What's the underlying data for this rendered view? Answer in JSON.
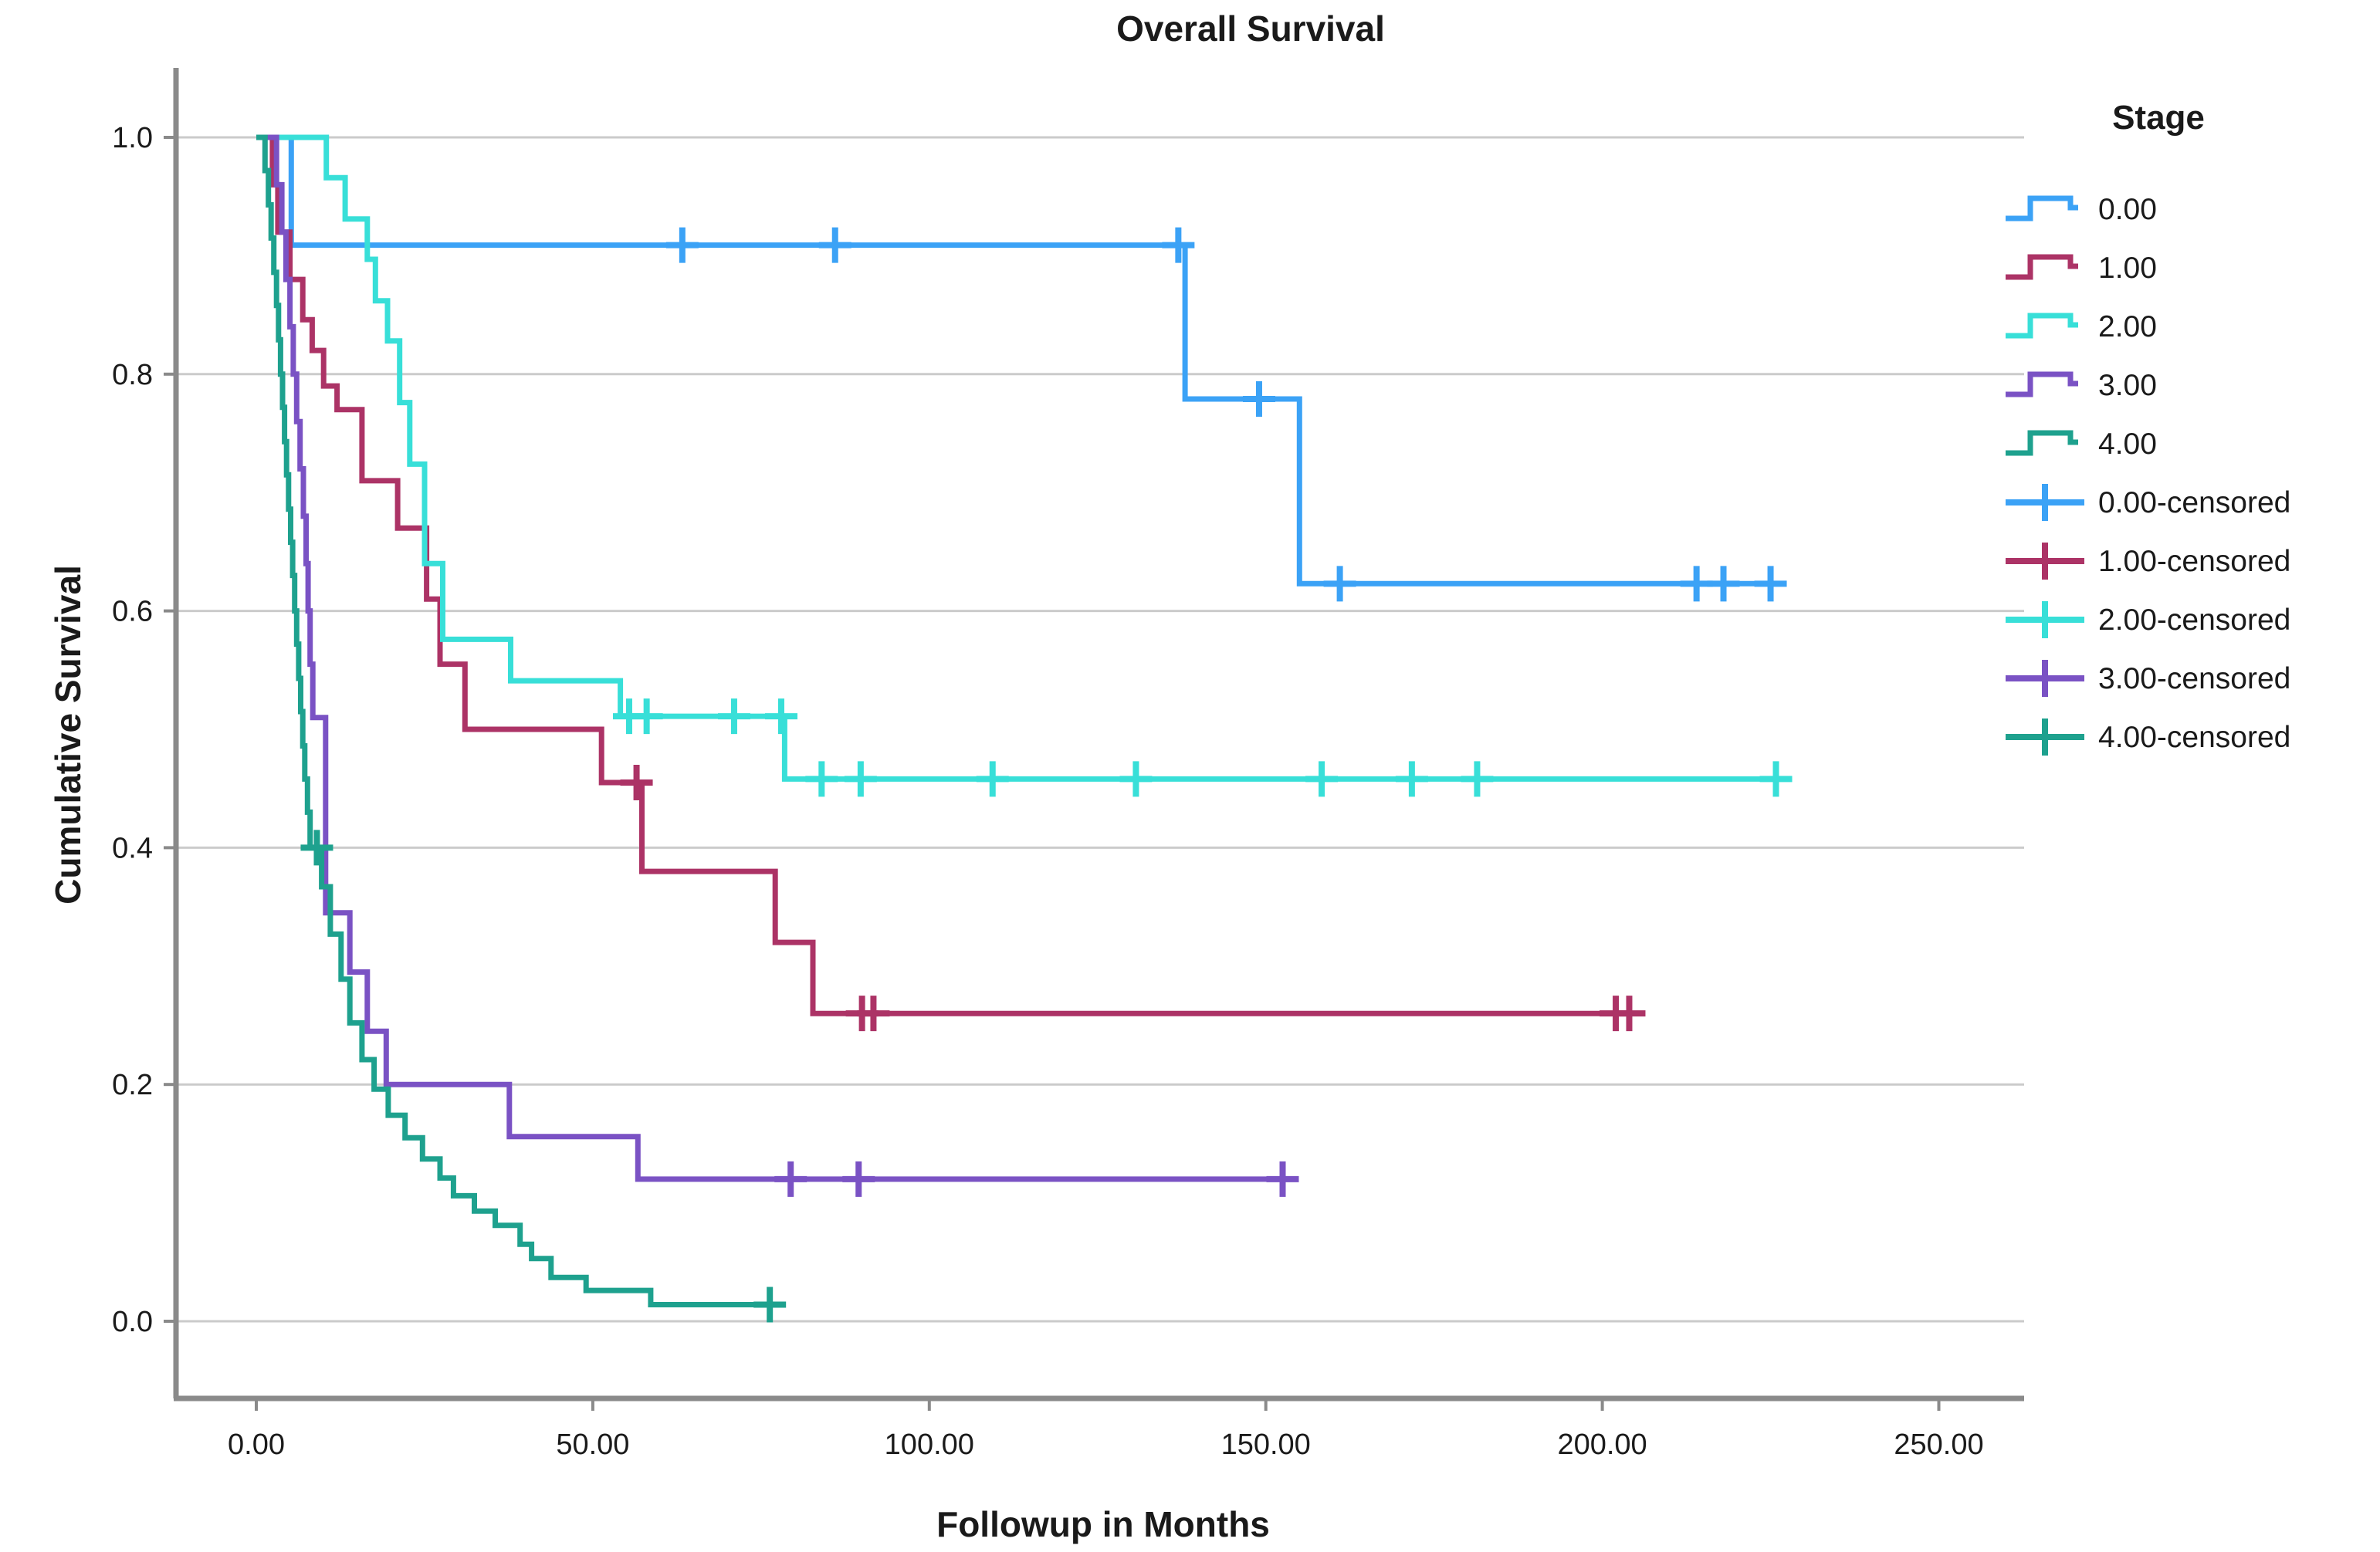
{
  "chart_data": {
    "type": "line",
    "subtype": "kaplan-meier-step",
    "title": "Overall Survival",
    "xlabel": "Followup in Months",
    "ylabel": "Cumulative Survival",
    "legend_title": "Stage",
    "grid": "horizontal-only",
    "legend_position": "right",
    "xlim": [
      -12,
      262
    ],
    "ylim": [
      -0.06,
      1.06
    ],
    "xticks": [
      0,
      50,
      100,
      150,
      200,
      250
    ],
    "xtick_labels": [
      "0.00",
      "50.00",
      "100.00",
      "150.00",
      "200.00",
      "250.00"
    ],
    "yticks": [
      0.0,
      0.2,
      0.4,
      0.6,
      0.8,
      1.0
    ],
    "ytick_labels": [
      "0.0",
      "0.2",
      "0.4",
      "0.6",
      "0.8",
      "1.0"
    ],
    "censored_labels": [
      "0.00-censored",
      "1.00-censored",
      "2.00-censored",
      "3.00-censored",
      "4.00-censored"
    ],
    "series": [
      {
        "name": "0.00",
        "color": "#3ba2f6",
        "steps": [
          [
            0,
            1.0
          ],
          [
            5.2,
            0.909
          ],
          [
            138,
            0.779
          ],
          [
            155,
            0.623
          ]
        ],
        "censors": [
          63.3,
          86,
          137,
          149,
          161,
          214,
          218,
          225
        ],
        "end": 227
      },
      {
        "name": "1.00",
        "color": "#ac3366",
        "steps": [
          [
            0,
            1.0
          ],
          [
            2.4,
            0.96
          ],
          [
            3.2,
            0.92
          ],
          [
            5.0,
            0.88
          ],
          [
            6.9,
            0.846
          ],
          [
            8.3,
            0.82
          ],
          [
            10.0,
            0.79
          ],
          [
            12.0,
            0.77
          ],
          [
            15.7,
            0.71
          ],
          [
            21.0,
            0.67
          ],
          [
            25.3,
            0.61
          ],
          [
            27.3,
            0.555
          ],
          [
            31.0,
            0.5
          ],
          [
            51.3,
            0.455
          ],
          [
            57.3,
            0.38
          ],
          [
            77.1,
            0.32
          ],
          [
            82.7,
            0.26
          ]
        ],
        "censors": [
          56.5,
          90,
          91.7,
          202,
          204
        ],
        "end": 205
      },
      {
        "name": "2.00",
        "color": "#38dfd8",
        "steps": [
          [
            0,
            1.0
          ],
          [
            10.4,
            0.966
          ],
          [
            13.2,
            0.931
          ],
          [
            16.5,
            0.897
          ],
          [
            17.7,
            0.862
          ],
          [
            19.5,
            0.828
          ],
          [
            21.3,
            0.776
          ],
          [
            22.8,
            0.724
          ],
          [
            25.0,
            0.64
          ],
          [
            27.7,
            0.576
          ],
          [
            37.8,
            0.541
          ],
          [
            54.1,
            0.511
          ],
          [
            78.5,
            0.458
          ]
        ],
        "censors": [
          55.4,
          58,
          71,
          78,
          84,
          89.8,
          109.4,
          130.7,
          158.3,
          171.7,
          181.4,
          225.8
        ],
        "end": 227
      },
      {
        "name": "3.00",
        "color": "#7a52c4",
        "steps": [
          [
            0,
            1.0
          ],
          [
            3.0,
            0.96
          ],
          [
            3.8,
            0.92
          ],
          [
            4.4,
            0.88
          ],
          [
            5.0,
            0.84
          ],
          [
            5.5,
            0.8
          ],
          [
            6.0,
            0.76
          ],
          [
            6.5,
            0.72
          ],
          [
            7.0,
            0.68
          ],
          [
            7.4,
            0.64
          ],
          [
            7.7,
            0.6
          ],
          [
            8.0,
            0.555
          ],
          [
            8.4,
            0.51
          ],
          [
            10.3,
            0.345
          ],
          [
            13.9,
            0.295
          ],
          [
            16.5,
            0.245
          ],
          [
            19.3,
            0.2
          ],
          [
            37.6,
            0.156
          ],
          [
            56.7,
            0.12
          ]
        ],
        "censors": [
          79.4,
          89.5,
          152.5
        ],
        "end": 152.5
      },
      {
        "name": "4.00",
        "color": "#1ea18e",
        "steps": [
          [
            0,
            1.0
          ],
          [
            1.3,
            0.972
          ],
          [
            1.8,
            0.943
          ],
          [
            2.2,
            0.915
          ],
          [
            2.6,
            0.886
          ],
          [
            3.0,
            0.858
          ],
          [
            3.3,
            0.829
          ],
          [
            3.6,
            0.8
          ],
          [
            3.9,
            0.772
          ],
          [
            4.2,
            0.743
          ],
          [
            4.5,
            0.715
          ],
          [
            4.8,
            0.686
          ],
          [
            5.1,
            0.658
          ],
          [
            5.4,
            0.63
          ],
          [
            5.7,
            0.6
          ],
          [
            6.0,
            0.572
          ],
          [
            6.3,
            0.543
          ],
          [
            6.6,
            0.515
          ],
          [
            6.9,
            0.486
          ],
          [
            7.2,
            0.458
          ],
          [
            7.6,
            0.43
          ],
          [
            8.0,
            0.4
          ],
          [
            9.7,
            0.367
          ],
          [
            11.0,
            0.327
          ],
          [
            12.6,
            0.289
          ],
          [
            13.9,
            0.252
          ],
          [
            15.7,
            0.221
          ],
          [
            17.5,
            0.196
          ],
          [
            19.6,
            0.174
          ],
          [
            22.1,
            0.155
          ],
          [
            24.7,
            0.137
          ],
          [
            27.3,
            0.121
          ],
          [
            29.3,
            0.106
          ],
          [
            32.4,
            0.093
          ],
          [
            35.5,
            0.081
          ],
          [
            39.2,
            0.065
          ],
          [
            40.9,
            0.053
          ],
          [
            43.8,
            0.037
          ],
          [
            49.0,
            0.026
          ],
          [
            58.6,
            0.014
          ]
        ],
        "censors": [
          9.0,
          76.3
        ],
        "end": 76.3
      }
    ],
    "style": {
      "grid_color": "#cbcbcb",
      "spine_color": "#8a8a8a",
      "text_color": "#1a1a1a",
      "background": "#ffffff"
    }
  }
}
